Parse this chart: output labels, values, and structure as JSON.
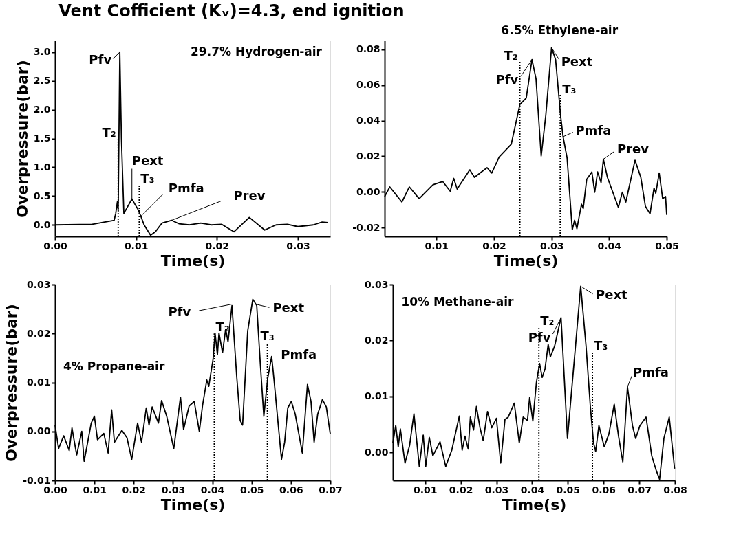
{
  "chart_data": [
    {
      "type": "line",
      "title": "Vent Cofficient (Kᵥ)=4.3, end ignition",
      "xlabel": "Time(s)",
      "ylabel": "Overpressure(bar)",
      "xlim": [
        0,
        0.034
      ],
      "ylim": [
        -0.2,
        3.2
      ],
      "xticks": [
        {
          "value": 0,
          "label": "0.00"
        },
        {
          "value": 0.01,
          "label": "0.01"
        },
        {
          "value": 0.02,
          "label": "0.02"
        },
        {
          "value": 0.03,
          "label": "0.03"
        }
      ],
      "yticks": [
        {
          "value": 0,
          "label": "0.0"
        },
        {
          "value": 0.5,
          "label": "0.5"
        },
        {
          "value": 1,
          "label": "1.0"
        },
        {
          "value": 1.5,
          "label": "1.5"
        },
        {
          "value": 2,
          "label": "2.0"
        },
        {
          "value": 2.5,
          "label": "2.5"
        },
        {
          "value": 3,
          "label": "3.0"
        }
      ],
      "series": [
        {
          "type": "line",
          "color": "#000000",
          "x": [
            0,
            0.0046,
            0.0073,
            0.0075,
            0.0077,
            0.0078,
            0.008,
            0.0082,
            0.0085,
            0.0089,
            0.0095,
            0.0099,
            0.0102,
            0.0106,
            0.011,
            0.0118,
            0.0124,
            0.0132,
            0.0144,
            0.0153,
            0.0166,
            0.018,
            0.0193,
            0.0206,
            0.0221,
            0.024,
            0.0259,
            0.0273,
            0.0287,
            0.03,
            0.0319,
            0.033,
            0.0337
          ],
          "values": [
            0,
            0.01,
            0.08,
            0.2,
            0.4,
            0.25,
            3.0,
            1.5,
            0.2,
            0.3,
            0.45,
            0.35,
            0.28,
            0.15,
            0.0,
            -0.18,
            -0.12,
            0.03,
            0.08,
            0.02,
            0.0,
            0.03,
            0.0,
            0.01,
            -0.12,
            0.13,
            -0.09,
            0.0,
            0.01,
            -0.03,
            0.0,
            0.05,
            0.04
          ]
        },
        {
          "type": "line",
          "color": "#000000",
          "line_style": "dotted",
          "x": [
            0.0078,
            0.0078
          ],
          "values": [
            -0.2,
            1.5
          ]
        },
        {
          "type": "line",
          "color": "#000000",
          "line_style": "dotted",
          "x": [
            0.0104,
            0.0104
          ],
          "values": [
            -0.2,
            0.7
          ]
        }
      ],
      "annotations": [
        "29.7% Hydrogen-air",
        {
          "text": "Pfv",
          "x": 0.008,
          "y": 3.0
        },
        {
          "text": "T₂",
          "x": 0.0078,
          "y": 1.5
        },
        {
          "text": "Pext",
          "x": 0.0095,
          "y": 0.45
        },
        {
          "text": "T₃",
          "x": 0.0104,
          "y": 0.7
        },
        {
          "text": "Pmfa",
          "x": 0.0106,
          "y": 0.15
        },
        {
          "text": "Prev",
          "x": 0.0144,
          "y": 0.08
        }
      ]
    },
    {
      "type": "line",
      "xlabel": "Time(s)",
      "xlim": [
        0.001,
        0.05
      ],
      "ylim": [
        -0.025,
        0.085
      ],
      "xticks": [
        {
          "value": 0.01,
          "label": "0.01"
        },
        {
          "value": 0.02,
          "label": "0.02"
        },
        {
          "value": 0.03,
          "label": "0.03"
        },
        {
          "value": 0.04,
          "label": "0.04"
        },
        {
          "value": 0.05,
          "label": "0.05"
        }
      ],
      "yticks": [
        {
          "value": -0.02,
          "label": "-0.02"
        },
        {
          "value": 0,
          "label": "0.00"
        },
        {
          "value": 0.02,
          "label": "0.02"
        },
        {
          "value": 0.04,
          "label": "0.04"
        },
        {
          "value": 0.06,
          "label": "0.06"
        },
        {
          "value": 0.08,
          "label": "0.08"
        }
      ],
      "series": [
        {
          "type": "line",
          "color": "#000000",
          "x": [
            0.001,
            0.0019,
            0.004,
            0.0053,
            0.007,
            0.0094,
            0.0111,
            0.0124,
            0.013,
            0.0136,
            0.0158,
            0.0166,
            0.0188,
            0.0196,
            0.0209,
            0.023,
            0.0245,
            0.0256,
            0.0266,
            0.0273,
            0.0282,
            0.029,
            0.03,
            0.0307,
            0.0316,
            0.032,
            0.0327,
            0.0336,
            0.034,
            0.0344,
            0.0352,
            0.0355,
            0.0361,
            0.037,
            0.0375,
            0.038,
            0.0386,
            0.039,
            0.0397,
            0.0416,
            0.0423,
            0.0429,
            0.0445,
            0.0455,
            0.0463,
            0.0471,
            0.0478,
            0.0481,
            0.0487,
            0.0493,
            0.0498,
            0.05
          ],
          "values": [
            -0.0026,
            0.0028,
            -0.0057,
            0.0028,
            -0.0038,
            0.004,
            0.0058,
            0.0004,
            0.0076,
            0.0016,
            0.0124,
            0.0082,
            0.0136,
            0.0106,
            0.0196,
            0.0268,
            0.0491,
            0.0527,
            0.0743,
            0.0635,
            0.0202,
            0.0431,
            0.081,
            0.0743,
            0.0419,
            0.031,
            0.019,
            -0.0213,
            -0.0159,
            -0.0207,
            -0.0069,
            -0.0093,
            0.007,
            0.0112,
            -0.0002,
            0.0112,
            0.0052,
            0.0184,
            0.0082,
            -0.0087,
            -0.0002,
            -0.0057,
            0.0178,
            0.0082,
            -0.0081,
            -0.0123,
            0.0022,
            -0.0008,
            0.0106,
            -0.0038,
            -0.0026,
            -0.0129
          ]
        },
        {
          "type": "line",
          "color": "#000000",
          "line_style": "dotted",
          "x": [
            0.0245,
            0.0245
          ],
          "values": [
            -0.025,
            0.073
          ]
        },
        {
          "type": "line",
          "color": "#000000",
          "line_style": "dotted",
          "x": [
            0.0315,
            0.0315
          ],
          "values": [
            -0.025,
            0.055
          ]
        }
      ],
      "annotations": [
        "6.5% Ethylene-air",
        {
          "text": "Pfv",
          "x": 0.0266,
          "y": 0.0743
        },
        {
          "text": "T₂",
          "x": 0.0245,
          "y": 0.073
        },
        {
          "text": "Pext",
          "x": 0.03,
          "y": 0.081
        },
        {
          "text": "T₃",
          "x": 0.0315,
          "y": 0.055
        },
        {
          "text": "Pmfa",
          "x": 0.032,
          "y": 0.031
        },
        {
          "text": "Prev",
          "x": 0.039,
          "y": 0.0184
        }
      ]
    },
    {
      "type": "line",
      "xlabel": "Time(s)",
      "ylabel": "Overpressure(bar)",
      "xlim": [
        0,
        0.07
      ],
      "ylim": [
        -0.01,
        0.03
      ],
      "xticks": [
        {
          "value": 0,
          "label": "0.00"
        },
        {
          "value": 0.01,
          "label": "0.01"
        },
        {
          "value": 0.02,
          "label": "0.02"
        },
        {
          "value": 0.03,
          "label": "0.03"
        },
        {
          "value": 0.04,
          "label": "0.04"
        },
        {
          "value": 0.05,
          "label": "0.05"
        },
        {
          "value": 0.06,
          "label": "0.06"
        },
        {
          "value": 0.07,
          "label": "0.07"
        }
      ],
      "yticks": [
        {
          "value": -0.01,
          "label": "-0.01"
        },
        {
          "value": 0,
          "label": "0.00"
        },
        {
          "value": 0.01,
          "label": "0.01"
        },
        {
          "value": 0.02,
          "label": "0.02"
        },
        {
          "value": 0.03,
          "label": "0.03"
        }
      ],
      "series": [
        {
          "type": "line",
          "color": "#000000",
          "x": [
            0,
            0.0009,
            0.0022,
            0.0036,
            0.0043,
            0.0055,
            0.0068,
            0.0074,
            0.0092,
            0.01,
            0.0108,
            0.0124,
            0.0135,
            0.0144,
            0.0151,
            0.017,
            0.0183,
            0.0195,
            0.021,
            0.022,
            0.0232,
            0.0239,
            0.0247,
            0.0263,
            0.0271,
            0.0284,
            0.0302,
            0.0319,
            0.0327,
            0.0341,
            0.0354,
            0.0367,
            0.0375,
            0.0386,
            0.0391,
            0.0402,
            0.0407,
            0.0413,
            0.0417,
            0.0426,
            0.0434,
            0.044,
            0.045,
            0.0462,
            0.0471,
            0.0477,
            0.049,
            0.0503,
            0.0513,
            0.0522,
            0.0531,
            0.0541,
            0.0551,
            0.0557,
            0.0576,
            0.0584,
            0.0592,
            0.0601,
            0.0611,
            0.0629,
            0.0642,
            0.0651,
            0.0659,
            0.0668,
            0.068,
            0.069,
            0.07
          ],
          "values": [
            0.0013,
            -0.0035,
            -0.0009,
            -0.0039,
            0.0007,
            -0.0048,
            0,
            -0.0061,
            0.0017,
            0.0031,
            -0.0017,
            -0.0004,
            -0.0044,
            0.0044,
            -0.0022,
            0.0002,
            -0.0013,
            -0.0057,
            0.0017,
            -0.0022,
            0.0048,
            0.0013,
            0.005,
            0.0017,
            0.0063,
            0.0031,
            -0.0035,
            0.007,
            0.0004,
            0.0052,
            0.0061,
            0,
            0.0052,
            0.0105,
            0.0092,
            0.0148,
            0.0201,
            0.0157,
            0.0201,
            0.0161,
            0.0209,
            0.0183,
            0.0257,
            0.0113,
            0.0022,
            0.0013,
            0.0205,
            0.027,
            0.0257,
            0.014,
            0.0031,
            0.0109,
            0.0153,
            0.0105,
            -0.0057,
            -0.0022,
            0.0048,
            0.0061,
            0.0035,
            -0.0044,
            0.0096,
            0.0061,
            -0.0022,
            0.0035,
            0.0065,
            0.005,
            -0.0005
          ]
        },
        {
          "type": "line",
          "color": "#000000",
          "line_style": "dotted",
          "x": [
            0.0405,
            0.0405
          ],
          "values": [
            -0.01,
            0.02
          ]
        },
        {
          "type": "line",
          "color": "#000000",
          "line_style": "dotted",
          "x": [
            0.054,
            0.054
          ],
          "values": [
            -0.01,
            0.018
          ]
        }
      ],
      "annotations": [
        "4% Propane-air",
        {
          "text": "Pfv",
          "x": 0.045,
          "y": 0.026
        },
        {
          "text": "T₂",
          "x": 0.0405,
          "y": 0.02
        },
        {
          "text": "Pext",
          "x": 0.051,
          "y": 0.026
        },
        {
          "text": "T₃",
          "x": 0.054,
          "y": 0.018
        },
        {
          "text": "Pmfa",
          "x": 0.055,
          "y": 0.015
        }
      ]
    },
    {
      "type": "line",
      "xlabel": "Time(s)",
      "xlim": [
        0.001,
        0.08
      ],
      "ylim": [
        -0.005,
        0.03
      ],
      "xticks": [
        {
          "value": 0.01,
          "label": "0.01"
        },
        {
          "value": 0.02,
          "label": "0.02"
        },
        {
          "value": 0.03,
          "label": "0.03"
        },
        {
          "value": 0.04,
          "label": "0.04"
        },
        {
          "value": 0.05,
          "label": "0.05"
        },
        {
          "value": 0.06,
          "label": "0.06"
        },
        {
          "value": 0.07,
          "label": "0.07"
        },
        {
          "value": 0.08,
          "label": "0.08"
        }
      ],
      "yticks": [
        {
          "value": 0,
          "label": "0.00"
        },
        {
          "value": 0.01,
          "label": "0.01"
        },
        {
          "value": 0.02,
          "label": "0.02"
        },
        {
          "value": 0.03,
          "label": "0.03"
        }
      ],
      "series": [
        {
          "type": "line",
          "color": "#000000",
          "x": [
            0.001,
            0.0018,
            0.0025,
            0.0031,
            0.0044,
            0.0057,
            0.0069,
            0.0084,
            0.0095,
            0.0102,
            0.0112,
            0.0122,
            0.0142,
            0.0158,
            0.0175,
            0.0196,
            0.0204,
            0.0212,
            0.0221,
            0.0227,
            0.0236,
            0.0244,
            0.0254,
            0.0263,
            0.0275,
            0.0287,
            0.03,
            0.0312,
            0.0324,
            0.0333,
            0.035,
            0.0364,
            0.0375,
            0.0387,
            0.0393,
            0.0402,
            0.0412,
            0.0421,
            0.0428,
            0.0436,
            0.0445,
            0.0451,
            0.0463,
            0.0481,
            0.0499,
            0.0536,
            0.0551,
            0.0563,
            0.0572,
            0.0578,
            0.0587,
            0.0602,
            0.0615,
            0.063,
            0.0642,
            0.0654,
            0.0667,
            0.0681,
            0.069,
            0.0702,
            0.0719,
            0.0735,
            0.0748,
            0.0757,
            0.0769,
            0.0784,
            0.0799
          ],
          "values": [
            0.0017,
            0.0048,
            0.001,
            0.0042,
            -0.0019,
            0.0013,
            0.0069,
            -0.0025,
            0.0031,
            -0.0025,
            0.0027,
            -0.0006,
            0.0019,
            -0.0025,
            0.0004,
            0.0065,
            0.0004,
            0.0029,
            0.0006,
            0.0063,
            0.004,
            0.0082,
            0.0044,
            0.0021,
            0.0073,
            0.0044,
            0.0061,
            -0.0019,
            0.0059,
            0.0063,
            0.0088,
            0.0017,
            0.0063,
            0.0057,
            0.0098,
            0.0056,
            0.0125,
            0.0159,
            0.0134,
            0.0149,
            0.0193,
            0.0171,
            0.019,
            0.0241,
            0.0025,
            0.0297,
            0.019,
            0.0082,
            0.0017,
            0.0002,
            0.0048,
            0.001,
            0.0033,
            0.0086,
            0.0029,
            -0.0017,
            0.0117,
            0.0048,
            0.0025,
            0.0048,
            0.0063,
            -0.0006,
            -0.0033,
            -0.0048,
            0.0025,
            0.0063,
            -0.0029
          ]
        },
        {
          "type": "line",
          "color": "#000000",
          "line_style": "dotted",
          "x": [
            0.0419,
            0.0419
          ],
          "values": [
            -0.005,
            0.0224
          ]
        },
        {
          "type": "line",
          "color": "#000000",
          "line_style": "dotted",
          "x": [
            0.0569,
            0.0569
          ],
          "values": [
            -0.005,
            0.018
          ]
        }
      ],
      "annotations": [
        "10% Methane-air",
        {
          "text": "Pfv",
          "x": 0.0481,
          "y": 0.0241
        },
        {
          "text": "T₂",
          "x": 0.0419,
          "y": 0.0224
        },
        {
          "text": "Pext",
          "x": 0.0536,
          "y": 0.0297
        },
        {
          "text": "T₃",
          "x": 0.0569,
          "y": 0.018
        },
        {
          "text": "Pmfa",
          "x": 0.0667,
          "y": 0.0117
        }
      ]
    }
  ]
}
